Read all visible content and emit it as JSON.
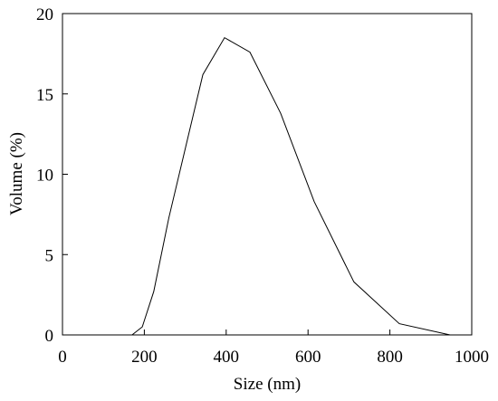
{
  "chart_data": {
    "type": "line",
    "x_label": "Size (nm)",
    "y_label": "Volume (%)",
    "x": [
      170,
      195,
      223,
      260,
      301,
      343,
      396,
      458,
      533,
      615,
      712,
      823,
      947
    ],
    "series": [
      {
        "color": "#000000",
        "values": [
          0,
          0.5,
          2.7,
          7.3,
          11.7,
          16.2,
          18.5,
          17.6,
          13.8,
          8.3,
          3.3,
          0.7,
          0
        ]
      }
    ],
    "xlim": [
      0,
      1000
    ],
    "xticks": [
      0,
      200,
      400,
      600,
      800,
      1000
    ],
    "ylim": [
      0,
      20
    ],
    "yticks": [
      0,
      5,
      10,
      15,
      20
    ]
  }
}
